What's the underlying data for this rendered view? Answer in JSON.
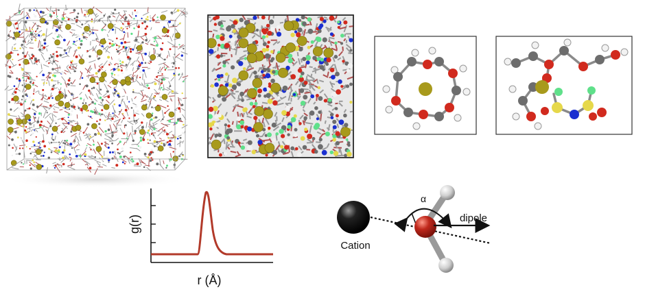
{
  "colors": {
    "carbon": "#6d6d6d",
    "oxygen": "#d12a1e",
    "hydrogen": "#f2f2f2",
    "cation": "#a89a1c",
    "nitrogen": "#1b2fd0",
    "sulfur": "#e6d84a",
    "fluorine": "#5fe08a",
    "rdf_curve": "#b23a2a"
  },
  "rdf_plot": {
    "ylabel": "g(r)",
    "xlabel": "r  (Å)"
  },
  "dipole_diagram": {
    "cation_label": "Cation",
    "angle_label": "α",
    "dipole_label": "dipole"
  }
}
